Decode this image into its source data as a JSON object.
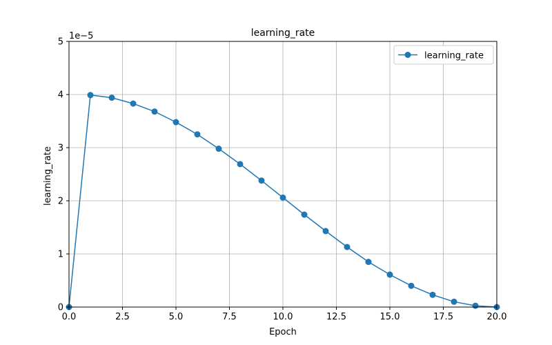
{
  "chart_data": {
    "type": "line",
    "title": "learning_rate",
    "xlabel": "Epoch",
    "ylabel": "learning_rate",
    "y_scale_label": "1e−5",
    "xlim": [
      0,
      20
    ],
    "ylim": [
      0,
      5
    ],
    "x_ticks": [
      "0.0",
      "2.5",
      "5.0",
      "7.5",
      "10.0",
      "12.5",
      "15.0",
      "17.5",
      "20.0"
    ],
    "x_tick_values": [
      0,
      2.5,
      5,
      7.5,
      10,
      12.5,
      15,
      17.5,
      20
    ],
    "y_ticks": [
      "0",
      "1",
      "2",
      "3",
      "4",
      "5"
    ],
    "y_tick_values": [
      0,
      1,
      2,
      3,
      4,
      5
    ],
    "grid": true,
    "legend_position": "top-right",
    "series": [
      {
        "name": "learning_rate",
        "color": "#1f77b4",
        "x": [
          0,
          1,
          2,
          3,
          4,
          5,
          6,
          7,
          8,
          9,
          10,
          11,
          12,
          13,
          14,
          15,
          16,
          17,
          18,
          19,
          20
        ],
        "y": [
          0,
          3.99,
          3.94,
          3.83,
          3.68,
          3.48,
          3.25,
          2.98,
          2.69,
          2.38,
          2.06,
          1.74,
          1.43,
          1.13,
          0.85,
          0.61,
          0.4,
          0.23,
          0.1,
          0.025,
          0
        ]
      }
    ]
  }
}
